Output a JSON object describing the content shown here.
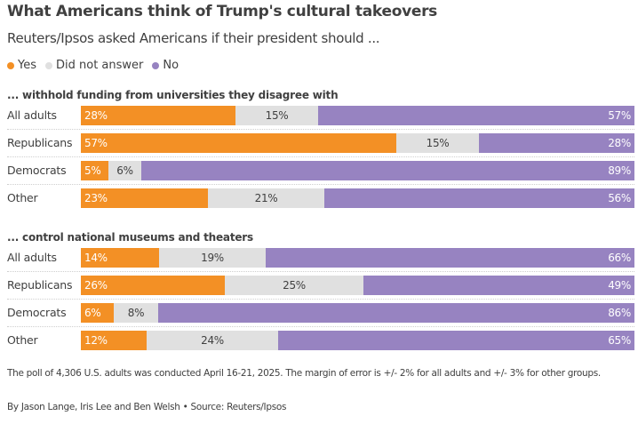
{
  "title": "What Americans think of Trump's cultural takeovers",
  "subtitle": "Reuters/Ipsos asked Americans if their president should ...",
  "legend": [
    {
      "label": "Yes",
      "color": "#f39025"
    },
    {
      "label": "Did not answer",
      "color": "#e0e0e0"
    },
    {
      "label": "No",
      "color": "#9783c1"
    }
  ],
  "note": "The poll of 4,306 U.S. adults was conducted April 16-21, 2025. The margin of error is +/- 2% for all adults and +/- 3% for other groups.",
  "credit": "By Jason Lange, Iris Lee and Ben Welsh • Source: Reuters/Ipsos",
  "chart_data": {
    "type": "bar",
    "orientation": "horizontal",
    "stacked": true,
    "normalized_percent": true,
    "title": "What Americans think of Trump's cultural takeovers",
    "subtitle": "Reuters/Ipsos asked Americans if their president should ...",
    "legend_position": "top-left",
    "series_names": [
      "Yes",
      "Did not answer",
      "No"
    ],
    "series_colors": [
      "#f39025",
      "#e0e0e0",
      "#9783c1"
    ],
    "groups": [
      {
        "title": "... withhold funding from universities they disagree with",
        "categories": [
          "All adults",
          "Republicans",
          "Democrats",
          "Other"
        ],
        "series": [
          {
            "name": "Yes",
            "values": [
              28,
              57,
              5,
              23
            ]
          },
          {
            "name": "Did not answer",
            "values": [
              15,
              15,
              6,
              21
            ]
          },
          {
            "name": "No",
            "values": [
              57,
              28,
              89,
              56
            ]
          }
        ]
      },
      {
        "title": "... control national museums and theaters",
        "categories": [
          "All adults",
          "Republicans",
          "Democrats",
          "Other"
        ],
        "series": [
          {
            "name": "Yes",
            "values": [
              14,
              26,
              6,
              12
            ]
          },
          {
            "name": "Did not answer",
            "values": [
              19,
              25,
              8,
              24
            ]
          },
          {
            "name": "No",
            "values": [
              66,
              49,
              86,
              65
            ]
          }
        ]
      }
    ]
  }
}
